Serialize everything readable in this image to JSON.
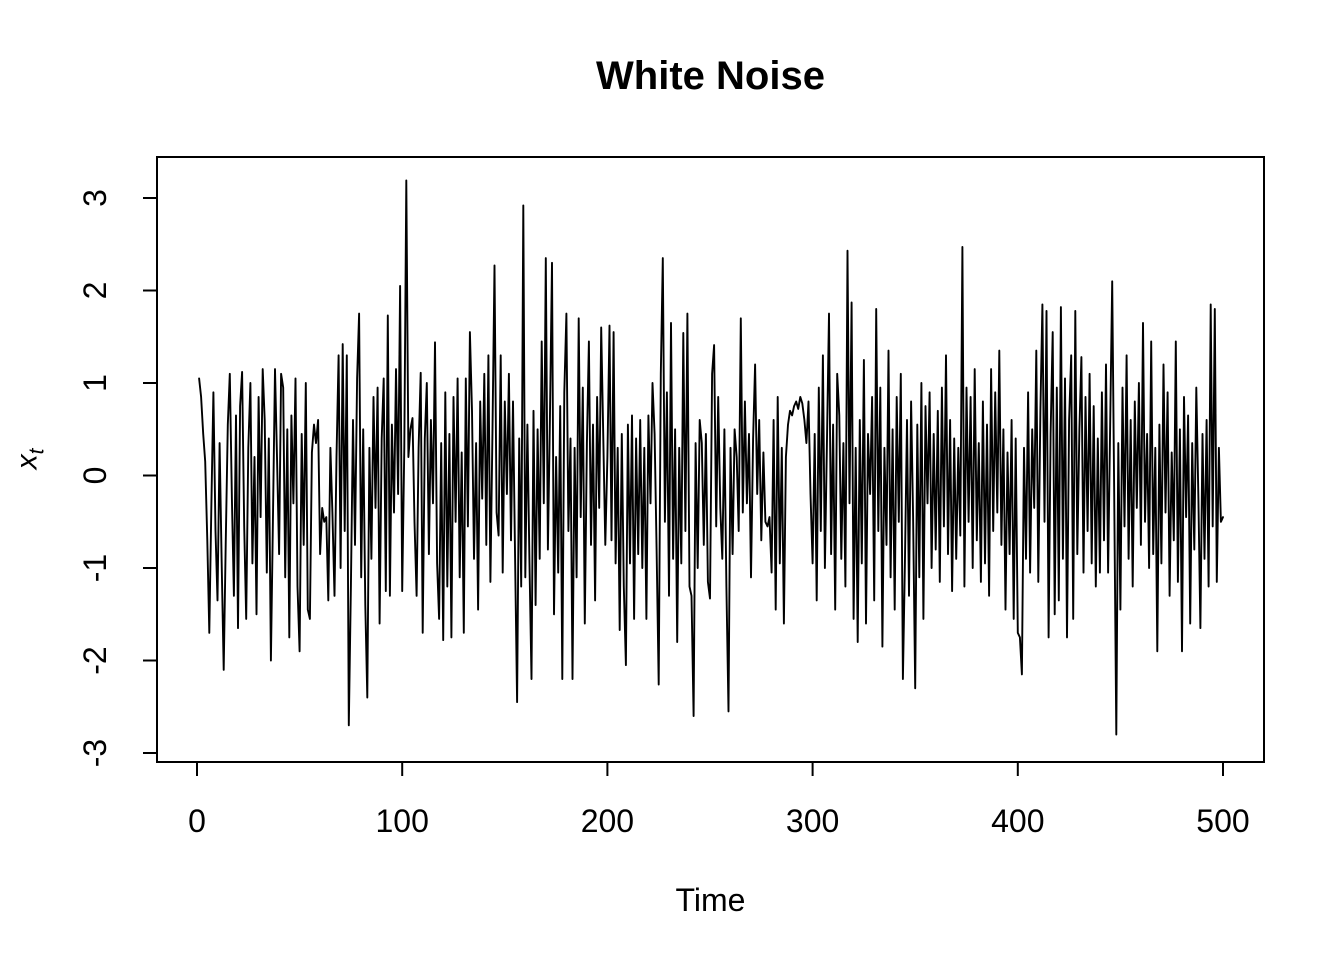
{
  "figure": {
    "title": "White Noise",
    "xlabel": "Time",
    "ylabel_base": "x",
    "ylabel_sub": "t",
    "background": "#ffffff",
    "line_color": "#000000",
    "axis_color": "#000000"
  },
  "chart_data": {
    "type": "line",
    "title": "White Noise",
    "xlabel": "Time",
    "ylabel": "x_t",
    "grid": false,
    "legend": "none",
    "n_points": 500,
    "x_start": 1,
    "x_ticks": [
      0,
      100,
      200,
      300,
      400,
      500
    ],
    "y_ticks": [
      3,
      2,
      1,
      0,
      -1,
      -2,
      -3
    ],
    "xlim": [
      -19.5,
      520.5
    ],
    "ylim": [
      -3.1,
      3.44
    ],
    "series": [
      {
        "name": "x_t",
        "values": [
          1.05,
          0.85,
          0.45,
          0.15,
          -0.7,
          -1.7,
          -0.3,
          0.9,
          -0.6,
          -1.35,
          0.35,
          -0.9,
          -2.1,
          -0.75,
          0.55,
          1.1,
          -0.25,
          -1.3,
          0.65,
          -1.65,
          0.75,
          1.12,
          -0.55,
          -1.55,
          0.3,
          1.0,
          -0.95,
          0.2,
          -1.5,
          0.85,
          -0.45,
          1.15,
          0.6,
          -1.05,
          0.4,
          -2.0,
          -0.5,
          1.15,
          0.2,
          -0.85,
          1.1,
          0.95,
          -1.1,
          0.5,
          -1.75,
          0.65,
          -0.3,
          1.05,
          -1.2,
          -1.9,
          0.45,
          -0.75,
          1.0,
          -1.45,
          -1.55,
          0.25,
          0.55,
          0.35,
          0.6,
          -0.85,
          -0.35,
          -0.5,
          -0.45,
          -1.35,
          0.3,
          -0.4,
          -1.3,
          0.2,
          1.3,
          -1.0,
          1.42,
          -0.6,
          1.3,
          -2.7,
          -1.2,
          0.6,
          -0.75,
          1.05,
          1.75,
          -1.1,
          0.5,
          -1.4,
          -2.4,
          0.3,
          -0.9,
          0.85,
          -0.35,
          0.95,
          -1.6,
          0.4,
          1.05,
          -1.25,
          1.73,
          -1.3,
          0.55,
          -0.4,
          1.15,
          -0.2,
          2.05,
          -1.25,
          0.3,
          3.19,
          0.2,
          0.5,
          0.62,
          -0.5,
          -1.3,
          0.3,
          1.11,
          -1.7,
          0.4,
          1.0,
          -0.85,
          0.6,
          -0.3,
          1.44,
          -0.95,
          -1.55,
          0.35,
          -1.78,
          0.9,
          -1.2,
          0.45,
          -1.75,
          0.85,
          -0.5,
          1.05,
          -1.1,
          0.25,
          -1.7,
          1.05,
          -0.55,
          1.55,
          0.7,
          -0.9,
          0.35,
          -1.45,
          0.8,
          -0.25,
          1.1,
          -0.75,
          1.3,
          -1.15,
          0.5,
          2.27,
          -0.4,
          -0.65,
          1.3,
          -1.05,
          0.8,
          -0.2,
          1.1,
          -0.7,
          0.8,
          -0.9,
          -2.45,
          0.4,
          -1.2,
          2.92,
          -1.1,
          0.55,
          -0.9,
          -2.2,
          0.7,
          -1.4,
          0.5,
          -0.9,
          1.45,
          -0.3,
          2.35,
          -0.8,
          0.6,
          2.3,
          -1.5,
          0.2,
          -1.05,
          0.75,
          -2.2,
          0.9,
          1.75,
          -0.6,
          0.4,
          -2.2,
          0.3,
          -1.1,
          1.7,
          -0.45,
          0.95,
          -1.6,
          0.35,
          1.45,
          -0.75,
          0.55,
          -1.35,
          0.85,
          -0.35,
          1.6,
          0.4,
          -0.75,
          0.2,
          1.62,
          -0.7,
          1.55,
          -0.95,
          0.3,
          -1.67,
          0.45,
          -1.2,
          -2.05,
          0.55,
          -0.95,
          0.65,
          -1.55,
          0.4,
          -0.85,
          0.6,
          -1.0,
          0.3,
          -1.55,
          0.65,
          -0.3,
          1.0,
          0.45,
          -0.8,
          -2.26,
          1.1,
          2.35,
          -0.5,
          0.9,
          -1.3,
          1.65,
          -0.9,
          0.5,
          -1.8,
          0.3,
          -0.95,
          1.54,
          -0.6,
          1.75,
          -1.2,
          -1.3,
          -2.6,
          0.35,
          -1.0,
          0.6,
          0.35,
          -0.75,
          0.45,
          -1.15,
          -1.33,
          1.1,
          1.41,
          -0.55,
          0.85,
          -0.35,
          -0.9,
          0.5,
          -1.2,
          -2.55,
          0.3,
          -0.85,
          0.5,
          0.2,
          -0.6,
          1.7,
          -0.4,
          0.8,
          -0.3,
          0.45,
          -1.1,
          0.4,
          1.2,
          -0.2,
          0.6,
          -0.7,
          0.25,
          -0.5,
          -0.55,
          -0.45,
          -1.05,
          0.6,
          -1.45,
          0.85,
          -0.95,
          0.3,
          -1.6,
          0.2,
          0.55,
          0.7,
          0.65,
          0.75,
          0.8,
          0.72,
          0.85,
          0.78,
          0.6,
          0.35,
          0.8,
          -0.2,
          -0.95,
          0.45,
          -1.35,
          0.95,
          -0.6,
          1.3,
          -1.0,
          0.4,
          1.75,
          -0.85,
          0.55,
          -1.45,
          1.1,
          0.65,
          -0.9,
          0.35,
          -1.2,
          2.43,
          -0.3,
          1.87,
          -1.55,
          0.3,
          -1.8,
          0.6,
          -0.95,
          1.25,
          -1.6,
          0.45,
          -0.2,
          0.85,
          -1.35,
          1.8,
          -0.6,
          0.95,
          -1.85,
          0.3,
          -0.75,
          1.35,
          -1.1,
          0.5,
          -1.45,
          0.85,
          -0.5,
          1.1,
          -2.2,
          -0.95,
          0.6,
          -1.3,
          0.8,
          -0.45,
          -2.3,
          0.55,
          -1.1,
          1.0,
          -1.55,
          0.75,
          -0.3,
          0.9,
          -1.0,
          0.45,
          -0.8,
          0.7,
          -1.15,
          0.95,
          -0.55,
          1.3,
          -0.85,
          0.6,
          -1.25,
          0.4,
          -0.9,
          0.3,
          -0.65,
          2.47,
          -1.2,
          0.95,
          -0.5,
          0.85,
          -1.0,
          1.15,
          -0.7,
          0.35,
          -1.15,
          0.8,
          -0.95,
          0.55,
          -1.3,
          1.15,
          -0.6,
          0.9,
          -0.4,
          1.35,
          -0.75,
          0.5,
          -1.45,
          0.25,
          -0.85,
          0.6,
          -1.55,
          0.4,
          -1.7,
          -1.75,
          -2.15,
          0.3,
          -0.9,
          0.9,
          -1.05,
          0.5,
          -0.35,
          1.35,
          -1.15,
          0.7,
          1.85,
          -0.5,
          1.78,
          -1.75,
          0.45,
          1.55,
          -1.5,
          0.95,
          -1.35,
          1.82,
          -0.9,
          1.05,
          -1.75,
          0.6,
          1.3,
          -1.55,
          1.78,
          -0.85,
          0.5,
          1.28,
          -1.05,
          0.85,
          -0.6,
          1.1,
          -0.95,
          0.75,
          -1.2,
          0.4,
          -1.05,
          0.9,
          -0.7,
          1.2,
          -1.05,
          0.5,
          2.1,
          -0.2,
          -2.8,
          0.35,
          -1.45,
          0.95,
          -0.55,
          1.3,
          -0.9,
          0.6,
          -1.2,
          0.8,
          -0.35,
          1.0,
          -0.75,
          1.65,
          -0.5,
          0.45,
          -1.0,
          1.45,
          -0.85,
          0.3,
          -1.9,
          0.55,
          -0.95,
          1.2,
          -0.4,
          0.9,
          -1.3,
          0.25,
          -0.7,
          1.45,
          -1.15,
          0.5,
          -1.9,
          0.85,
          -0.45,
          0.65,
          -1.6,
          0.35,
          -0.8,
          0.95,
          -0.25,
          -1.65,
          0.45,
          -0.9,
          0.6,
          -1.2,
          1.85,
          -0.55,
          1.8,
          -1.15,
          0.3,
          -0.5,
          -0.45
        ]
      }
    ]
  }
}
